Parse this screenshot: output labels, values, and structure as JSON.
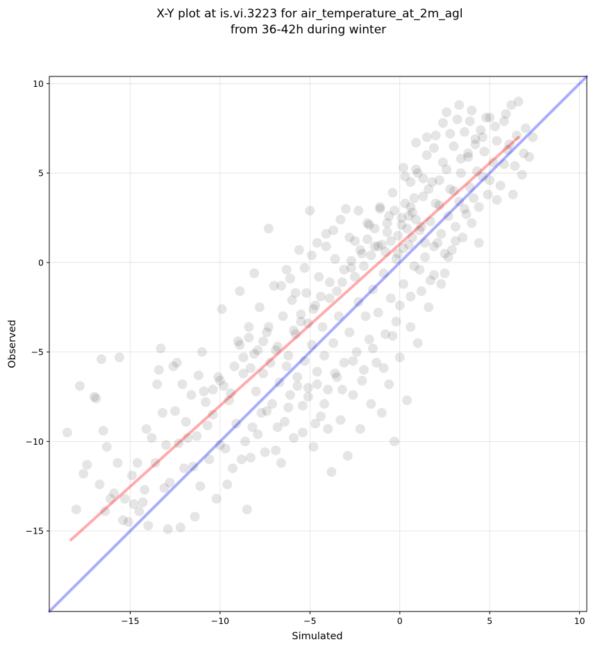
{
  "chart_data": {
    "type": "scatter",
    "title": "X-Y plot at is.vi.3223 for air_temperature_at_2m_agl",
    "subtitle": "from 36-42h during winter",
    "xlabel": "Simulated",
    "ylabel": "Observed",
    "xlim": [
      -19.5,
      10.4
    ],
    "ylim": [
      -19.5,
      10.4
    ],
    "x_ticks": [
      -15,
      -10,
      -5,
      0,
      5,
      10
    ],
    "y_ticks": [
      -15,
      -10,
      -5,
      0,
      5,
      10
    ],
    "x_tick_labels": [
      "−15",
      "−10",
      "−5",
      "0",
      "5",
      "10"
    ],
    "y_tick_labels": [
      "−15",
      "−10",
      "−5",
      "0",
      "5",
      "10"
    ],
    "grid": true,
    "point_color": "#000000",
    "point_alpha": 0.1,
    "reference_lines": [
      {
        "kind": "one-to-one",
        "color": "#0000ff",
        "alpha": 0.33,
        "x": [
          -19.5,
          10.4
        ],
        "y": [
          -19.5,
          10.4
        ]
      },
      {
        "kind": "fit",
        "color": "#ff0000",
        "alpha": 0.33,
        "x": [
          -18.3,
          6.6
        ],
        "y": [
          -15.5,
          7.0
        ]
      }
    ],
    "points": [
      [
        -18.5,
        -9.5
      ],
      [
        -18.0,
        -13.8
      ],
      [
        -17.8,
        -6.9
      ],
      [
        -17.6,
        -11.8
      ],
      [
        -17.4,
        -11.3
      ],
      [
        -17.0,
        -7.5
      ],
      [
        -16.9,
        -7.6
      ],
      [
        -16.7,
        -12.4
      ],
      [
        -16.6,
        -5.4
      ],
      [
        -16.5,
        -9.4
      ],
      [
        -16.4,
        -13.9
      ],
      [
        -16.3,
        -10.3
      ],
      [
        -16.1,
        -13.2
      ],
      [
        -15.9,
        -12.9
      ],
      [
        -15.7,
        -11.2
      ],
      [
        -15.6,
        -5.3
      ],
      [
        -15.3,
        -13.2
      ],
      [
        -15.1,
        -14.5
      ],
      [
        -14.9,
        -11.9
      ],
      [
        -14.6,
        -11.2
      ],
      [
        -14.5,
        -13.9
      ],
      [
        -14.3,
        -13.4
      ],
      [
        -14.1,
        -9.3
      ],
      [
        -14.0,
        -14.7
      ],
      [
        -13.8,
        -9.8
      ],
      [
        -13.6,
        -11.2
      ],
      [
        -13.4,
        -6.0
      ],
      [
        -13.3,
        -4.8
      ],
      [
        -13.2,
        -8.4
      ],
      [
        -13.0,
        -10.2
      ],
      [
        -12.9,
        -14.9
      ],
      [
        -12.8,
        -12.3
      ],
      [
        -12.5,
        -8.3
      ],
      [
        -12.4,
        -5.6
      ],
      [
        -12.2,
        -14.8
      ],
      [
        -12.1,
        -6.8
      ],
      [
        -12.0,
        -11.5
      ],
      [
        -11.8,
        -9.8
      ],
      [
        -11.6,
        -7.4
      ],
      [
        -11.4,
        -14.2
      ],
      [
        -11.3,
        -9.7
      ],
      [
        -11.1,
        -12.5
      ],
      [
        -11.0,
        -5.0
      ],
      [
        -10.8,
        -7.8
      ],
      [
        -10.6,
        -11.0
      ],
      [
        -10.4,
        -8.5
      ],
      [
        -10.2,
        -13.2
      ],
      [
        -10.0,
        -10.2
      ],
      [
        -10.0,
        -6.6
      ],
      [
        -9.9,
        -2.6
      ],
      [
        -9.7,
        -10.4
      ],
      [
        -9.6,
        -12.4
      ],
      [
        -9.4,
        -7.3
      ],
      [
        -9.3,
        -11.5
      ],
      [
        -9.1,
        -9.0
      ],
      [
        -9.0,
        -4.4
      ],
      [
        -8.9,
        -1.6
      ],
      [
        -8.8,
        -11.0
      ],
      [
        -8.7,
        -6.2
      ],
      [
        -8.6,
        -10.0
      ],
      [
        -8.5,
        -13.8
      ],
      [
        -8.4,
        -3.6
      ],
      [
        -8.3,
        -5.9
      ],
      [
        -8.2,
        -9.2
      ],
      [
        -8.1,
        -0.6
      ],
      [
        -8.0,
        -7.2
      ],
      [
        -7.9,
        -4.9
      ],
      [
        -7.8,
        -2.5
      ],
      [
        -7.7,
        -8.4
      ],
      [
        -7.6,
        -6.2
      ],
      [
        -7.5,
        -10.6
      ],
      [
        -7.4,
        -3.9
      ],
      [
        -7.3,
        1.9
      ],
      [
        -7.2,
        -5.6
      ],
      [
        -7.1,
        -7.9
      ],
      [
        -7.0,
        -1.3
      ],
      [
        -6.9,
        -10.5
      ],
      [
        -6.8,
        -4.7
      ],
      [
        -6.7,
        -6.7
      ],
      [
        -6.6,
        -11.2
      ],
      [
        -6.5,
        -3.0
      ],
      [
        -6.4,
        -8.9
      ],
      [
        -6.3,
        -0.4
      ],
      [
        -6.2,
        -5.2
      ],
      [
        -6.1,
        -7.4
      ],
      [
        -6.0,
        -2.1
      ],
      [
        -5.9,
        -9.8
      ],
      [
        -5.8,
        -4.0
      ],
      [
        -5.7,
        -6.4
      ],
      [
        -5.6,
        0.7
      ],
      [
        -5.5,
        -3.3
      ],
      [
        -5.4,
        -8.0
      ],
      [
        -5.3,
        -5.5
      ],
      [
        -5.2,
        -1.7
      ],
      [
        -5.1,
        -7.0
      ],
      [
        -5.0,
        2.9
      ],
      [
        -4.9,
        -4.6
      ],
      [
        -4.8,
        -10.3
      ],
      [
        -4.7,
        -2.4
      ],
      [
        -4.6,
        -6.1
      ],
      [
        -4.5,
        -0.8
      ],
      [
        -4.4,
        -8.6
      ],
      [
        -4.3,
        -3.6
      ],
      [
        -4.2,
        -5.2
      ],
      [
        -4.1,
        1.6
      ],
      [
        -4.0,
        -7.1
      ],
      [
        -3.9,
        -2.0
      ],
      [
        -3.8,
        -11.7
      ],
      [
        -3.7,
        -4.5
      ],
      [
        -3.6,
        0.2
      ],
      [
        -3.5,
        -6.4
      ],
      [
        -3.4,
        -3.0
      ],
      [
        -3.3,
        -8.8
      ],
      [
        -3.2,
        -1.1
      ],
      [
        -3.1,
        -5.6
      ],
      [
        -3.0,
        3.0
      ],
      [
        -2.9,
        -10.8
      ],
      [
        -2.8,
        -3.9
      ],
      [
        -2.7,
        -0.3
      ],
      [
        -2.6,
        -7.4
      ],
      [
        -2.5,
        1.2
      ],
      [
        -2.4,
        -5.0
      ],
      [
        -2.3,
        -2.2
      ],
      [
        -2.2,
        -9.3
      ],
      [
        -2.1,
        0.5
      ],
      [
        -2.0,
        -6.0
      ],
      [
        -1.9,
        -3.0
      ],
      [
        -1.8,
        2.2
      ],
      [
        -1.7,
        -4.3
      ],
      [
        -1.6,
        -7.9
      ],
      [
        -1.5,
        -1.5
      ],
      [
        -1.4,
        0.9
      ],
      [
        -1.3,
        -5.6
      ],
      [
        -1.2,
        -2.8
      ],
      [
        -1.1,
        3.0
      ],
      [
        -1.0,
        -8.4
      ],
      [
        -0.9,
        -0.6
      ],
      [
        -0.8,
        -4.0
      ],
      [
        -0.7,
        1.7
      ],
      [
        -0.6,
        -6.8
      ],
      [
        -0.5,
        -2.0
      ],
      [
        -0.4,
        3.9
      ],
      [
        -0.3,
        -10.0
      ],
      [
        -0.2,
        -3.3
      ],
      [
        -0.1,
        0.5
      ],
      [
        0.0,
        -5.3
      ],
      [
        0.1,
        2.5
      ],
      [
        0.2,
        -1.2
      ],
      [
        0.3,
        4.8
      ],
      [
        0.4,
        -7.7
      ],
      [
        0.5,
        1.0
      ],
      [
        0.6,
        -3.6
      ],
      [
        0.7,
        2.8
      ],
      [
        0.8,
        -0.2
      ],
      [
        0.9,
        5.2
      ],
      [
        1.0,
        -4.5
      ],
      [
        1.1,
        1.8
      ],
      [
        1.2,
        -1.6
      ],
      [
        1.3,
        3.7
      ],
      [
        1.4,
        0.3
      ],
      [
        1.5,
        6.0
      ],
      [
        1.6,
        -2.5
      ],
      [
        1.7,
        2.3
      ],
      [
        1.8,
        4.5
      ],
      [
        1.9,
        -0.7
      ],
      [
        2.0,
        7.1
      ],
      [
        2.1,
        1.1
      ],
      [
        2.2,
        3.2
      ],
      [
        2.3,
        -1.2
      ],
      [
        2.4,
        5.6
      ],
      [
        2.5,
        0.5
      ],
      [
        2.6,
        8.4
      ],
      [
        2.7,
        2.6
      ],
      [
        2.8,
        4.1
      ],
      [
        2.9,
        0.7
      ],
      [
        3.0,
        6.5
      ],
      [
        3.1,
        2.0
      ],
      [
        3.2,
        8.0
      ],
      [
        3.3,
        3.4
      ],
      [
        3.4,
        5.0
      ],
      [
        3.5,
        1.4
      ],
      [
        3.6,
        7.3
      ],
      [
        3.7,
        2.7
      ],
      [
        3.8,
        5.9
      ],
      [
        3.9,
        4.2
      ],
      [
        4.0,
        8.5
      ],
      [
        4.1,
        3.6
      ],
      [
        4.2,
        6.6
      ],
      [
        4.3,
        5.1
      ],
      [
        4.4,
        1.1
      ],
      [
        4.5,
        7.4
      ],
      [
        4.6,
        4.8
      ],
      [
        4.7,
        6.2
      ],
      [
        4.9,
        3.8
      ],
      [
        5.0,
        8.1
      ],
      [
        5.2,
        5.6
      ],
      [
        5.4,
        6.8
      ],
      [
        5.6,
        4.3
      ],
      [
        5.8,
        7.9
      ],
      [
        6.0,
        6.3
      ],
      [
        6.2,
        8.8
      ],
      [
        6.4,
        5.4
      ],
      [
        6.6,
        9.0
      ],
      [
        6.8,
        4.9
      ],
      [
        7.0,
        7.5
      ],
      [
        7.2,
        5.9
      ],
      [
        7.4,
        7.0
      ],
      [
        6.3,
        3.8
      ],
      [
        -0.3,
        2.9
      ],
      [
        0.1,
        2.1
      ],
      [
        0.5,
        2.6
      ],
      [
        0.6,
        3.1
      ],
      [
        -0.1,
        1.5
      ],
      [
        0.4,
        1.9
      ],
      [
        0.9,
        2.4
      ],
      [
        -0.5,
        1.2
      ],
      [
        0.2,
        0.8
      ],
      [
        0.7,
        1.4
      ],
      [
        1.2,
        2.0
      ],
      [
        -0.8,
        0.6
      ],
      [
        -0.2,
        0.2
      ],
      [
        0.3,
        3.3
      ],
      [
        0.8,
        3.6
      ],
      [
        1.4,
        1.1
      ],
      [
        -1.2,
        0.9
      ],
      [
        -0.6,
        2.6
      ],
      [
        -8.9,
        -4.6
      ],
      [
        -8.7,
        -5.3
      ],
      [
        -8.4,
        -4.2
      ],
      [
        -9.2,
        -5.8
      ],
      [
        -8.1,
        -5.1
      ],
      [
        -7.6,
        -4.4
      ],
      [
        -7.3,
        -3.6
      ],
      [
        -6.9,
        -4.9
      ],
      [
        -10.1,
        -6.4
      ],
      [
        -9.8,
        -6.9
      ],
      [
        -10.4,
        -7.1
      ],
      [
        -9.5,
        -7.7
      ],
      [
        -5.5,
        -2.9
      ],
      [
        -5.1,
        -3.4
      ],
      [
        -4.8,
        -2.6
      ],
      [
        -5.9,
        -3.8
      ],
      [
        -4.4,
        -1.9
      ],
      [
        -3.9,
        -1.1
      ],
      [
        -3.5,
        -1.6
      ],
      [
        -3.1,
        -0.4
      ],
      [
        -2.7,
        0.1
      ],
      [
        -2.2,
        0.7
      ],
      [
        -1.8,
        1.3
      ],
      [
        -1.4,
        1.9
      ],
      [
        -2.5,
        -0.8
      ],
      [
        -2.0,
        -0.2
      ],
      [
        -1.6,
        0.4
      ],
      [
        -1.0,
        1.0
      ],
      [
        2.2,
        4.6
      ],
      [
        2.6,
        5.2
      ],
      [
        3.0,
        4.0
      ],
      [
        3.4,
        5.8
      ],
      [
        3.8,
        6.1
      ],
      [
        4.2,
        6.9
      ],
      [
        4.6,
        7.0
      ],
      [
        2.0,
        3.3
      ],
      [
        1.6,
        4.1
      ],
      [
        1.0,
        5.0
      ],
      [
        1.3,
        4.7
      ],
      [
        0.6,
        4.5
      ],
      [
        0.2,
        5.3
      ],
      [
        0.9,
        6.7
      ],
      [
        -12.6,
        -5.8
      ],
      [
        -11.9,
        -8.9
      ],
      [
        -12.3,
        -10.1
      ],
      [
        -11.2,
        -6.3
      ],
      [
        -10.9,
        -7.2
      ],
      [
        -10.7,
        -9.1
      ],
      [
        -11.5,
        -11.4
      ],
      [
        -13.1,
        -12.6
      ],
      [
        -14.2,
        -12.7
      ],
      [
        -14.8,
        -13.5
      ],
      [
        -15.4,
        -14.4
      ],
      [
        -13.5,
        -6.8
      ],
      [
        -6.6,
        -1.3
      ],
      [
        -6.1,
        -0.9
      ],
      [
        -5.8,
        -1.7
      ],
      [
        -5.3,
        -0.3
      ],
      [
        -4.9,
        0.4
      ],
      [
        -4.6,
        1.1
      ],
      [
        -4.1,
        0.9
      ],
      [
        -3.7,
        1.8
      ],
      [
        -3.3,
        2.4
      ],
      [
        -2.8,
        1.4
      ],
      [
        -2.3,
        2.9
      ],
      [
        -1.7,
        2.1
      ],
      [
        -1.1,
        3.1
      ],
      [
        -0.7,
        2.2
      ],
      [
        -6.3,
        -5.8
      ],
      [
        -5.7,
        -6.9
      ],
      [
        -5.1,
        -7.5
      ],
      [
        -4.6,
        -6.8
      ],
      [
        -4.2,
        -7.9
      ],
      [
        -3.6,
        -6.2
      ],
      [
        -3.2,
        -7.1
      ],
      [
        -2.6,
        -5.5
      ],
      [
        -2.1,
        -6.6
      ],
      [
        -1.5,
        -4.8
      ],
      [
        -0.9,
        -5.9
      ],
      [
        -0.4,
        -4.1
      ],
      [
        -7.4,
        -8.3
      ],
      [
        -6.8,
        -9.2
      ],
      [
        -6.2,
        -8.1
      ],
      [
        -5.4,
        -9.5
      ],
      [
        -4.7,
        -9.0
      ],
      [
        -4.0,
        -9.3
      ],
      [
        -7.9,
        -9.6
      ],
      [
        -8.3,
        -10.9
      ],
      [
        1.9,
        0.9
      ],
      [
        2.3,
        1.6
      ],
      [
        2.7,
        0.3
      ],
      [
        3.1,
        1.2
      ],
      [
        2.5,
        -0.6
      ],
      [
        1.7,
        -1.0
      ],
      [
        1.1,
        -0.4
      ],
      [
        0.6,
        -1.9
      ],
      [
        0.0,
        -2.4
      ],
      [
        3.6,
        3.0
      ],
      [
        4.0,
        2.2
      ],
      [
        4.4,
        3.1
      ],
      [
        5.0,
        4.6
      ],
      [
        5.4,
        3.5
      ],
      [
        5.8,
        5.5
      ],
      [
        6.1,
        6.6
      ],
      [
        5.3,
        7.6
      ],
      [
        4.8,
        8.1
      ],
      [
        3.9,
        7.9
      ],
      [
        3.3,
        8.8
      ],
      [
        2.8,
        7.2
      ],
      [
        2.4,
        7.8
      ],
      [
        1.9,
        6.4
      ],
      [
        1.5,
        7.0
      ],
      [
        5.9,
        8.3
      ],
      [
        6.5,
        7.1
      ],
      [
        6.9,
        6.1
      ]
    ]
  }
}
